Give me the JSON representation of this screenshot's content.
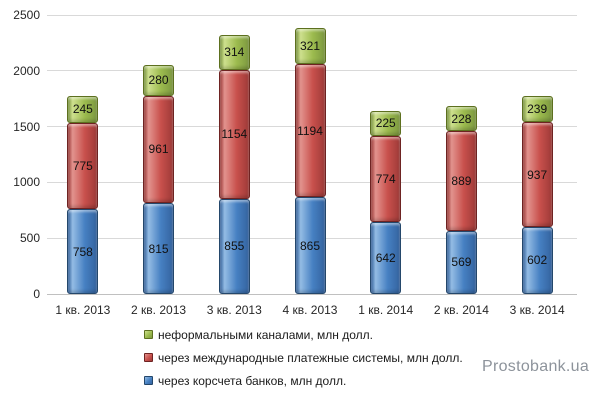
{
  "watermark": "Prostobank.ua",
  "chart_data": {
    "type": "bar",
    "stacked": true,
    "title": "",
    "xlabel": "",
    "ylabel": "",
    "categories": [
      "1 кв. 2013",
      "2 кв. 2013",
      "3 кв. 2013",
      "4 кв. 2013",
      "1 кв. 2014",
      "2 кв. 2014",
      "3 кв. 2014"
    ],
    "series": [
      {
        "name": "через корсчета банков, млн долл.",
        "values": [
          758,
          815,
          855,
          865,
          642,
          569,
          602
        ],
        "fill": "#4680C2",
        "light": "#94BCE4",
        "shade": "#34639F",
        "dark": "#24476B"
      },
      {
        "name": "через международные платежные системы, млн долл.",
        "values": [
          775,
          961,
          1154,
          1194,
          774,
          889,
          937
        ],
        "fill": "#C8504C",
        "light": "#E2938E",
        "shade": "#9E3A38",
        "dark": "#6E2322"
      },
      {
        "name": "неформальными каналами, млн долл.",
        "values": [
          245,
          280,
          314,
          321,
          225,
          228,
          239
        ],
        "fill": "#9CBB4E",
        "light": "#CEE08E",
        "shade": "#7C9840",
        "dark": "#5D701F"
      }
    ],
    "legend_order": [
      2,
      1,
      0
    ],
    "ylim": [
      0,
      2500
    ],
    "yticks": [
      0,
      500,
      1000,
      1500,
      2000,
      2500
    ],
    "grid": true,
    "legend_position": "bottom-left",
    "value_labels": "center"
  }
}
